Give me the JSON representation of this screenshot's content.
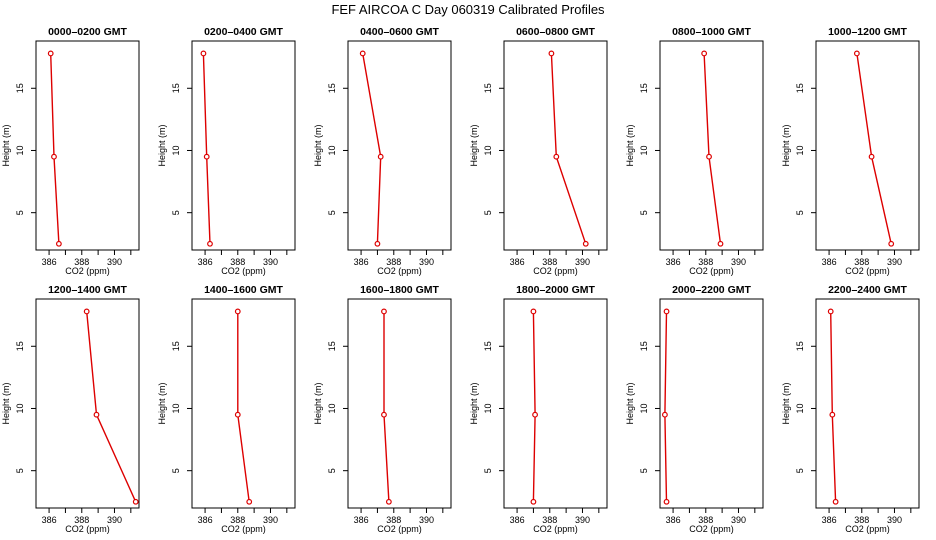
{
  "figure_title": "FEF AIRCOA C  Day 060319  Calibrated Profiles",
  "series_color": "#dd0000",
  "chart_data": [
    {
      "type": "line",
      "title": "0000–0200 GMT",
      "xlabel": "CO2 (ppm)",
      "ylabel": "Height (m)",
      "xlim": [
        385.2,
        391.5
      ],
      "ylim": [
        2,
        18.8
      ],
      "xticks": [
        386,
        388,
        390
      ],
      "yticks": [
        5,
        10,
        15
      ],
      "points": [
        {
          "x": 386.1,
          "y": 17.8
        },
        {
          "x": 386.3,
          "y": 9.5
        },
        {
          "x": 386.6,
          "y": 2.5
        }
      ]
    },
    {
      "type": "line",
      "title": "0200–0400 GMT",
      "xlabel": "CO2 (ppm)",
      "ylabel": "Height (m)",
      "xlim": [
        385.2,
        391.5
      ],
      "ylim": [
        2,
        18.8
      ],
      "xticks": [
        386,
        388,
        390
      ],
      "yticks": [
        5,
        10,
        15
      ],
      "points": [
        {
          "x": 385.9,
          "y": 17.8
        },
        {
          "x": 386.1,
          "y": 9.5
        },
        {
          "x": 386.3,
          "y": 2.5
        }
      ]
    },
    {
      "type": "line",
      "title": "0400–0600 GMT",
      "xlabel": "CO2 (ppm)",
      "ylabel": "Height (m)",
      "xlim": [
        385.2,
        391.5
      ],
      "ylim": [
        2,
        18.8
      ],
      "xticks": [
        386,
        388,
        390
      ],
      "yticks": [
        5,
        10,
        15
      ],
      "points": [
        {
          "x": 386.1,
          "y": 17.8
        },
        {
          "x": 387.2,
          "y": 9.5
        },
        {
          "x": 387.0,
          "y": 2.5
        }
      ]
    },
    {
      "type": "line",
      "title": "0600–0800 GMT",
      "xlabel": "CO2 (ppm)",
      "ylabel": "Height (m)",
      "xlim": [
        385.2,
        391.5
      ],
      "ylim": [
        2,
        18.8
      ],
      "xticks": [
        386,
        388,
        390
      ],
      "yticks": [
        5,
        10,
        15
      ],
      "points": [
        {
          "x": 388.1,
          "y": 17.8
        },
        {
          "x": 388.4,
          "y": 9.5
        },
        {
          "x": 390.2,
          "y": 2.5
        }
      ]
    },
    {
      "type": "line",
      "title": "0800–1000 GMT",
      "xlabel": "CO2 (ppm)",
      "ylabel": "Height (m)",
      "xlim": [
        385.2,
        391.5
      ],
      "ylim": [
        2,
        18.8
      ],
      "xticks": [
        386,
        388,
        390
      ],
      "yticks": [
        5,
        10,
        15
      ],
      "points": [
        {
          "x": 387.9,
          "y": 17.8
        },
        {
          "x": 388.2,
          "y": 9.5
        },
        {
          "x": 388.9,
          "y": 2.5
        }
      ]
    },
    {
      "type": "line",
      "title": "1000–1200 GMT",
      "xlabel": "CO2 (ppm)",
      "ylabel": "Height (m)",
      "xlim": [
        385.2,
        391.5
      ],
      "ylim": [
        2,
        18.8
      ],
      "xticks": [
        386,
        388,
        390
      ],
      "yticks": [
        5,
        10,
        15
      ],
      "points": [
        {
          "x": 387.7,
          "y": 17.8
        },
        {
          "x": 388.6,
          "y": 9.5
        },
        {
          "x": 389.8,
          "y": 2.5
        }
      ]
    },
    {
      "type": "line",
      "title": "1200–1400 GMT",
      "xlabel": "CO2 (ppm)",
      "ylabel": "Height (m)",
      "xlim": [
        385.2,
        391.5
      ],
      "ylim": [
        2,
        18.8
      ],
      "xticks": [
        386,
        388,
        390
      ],
      "yticks": [
        5,
        10,
        15
      ],
      "points": [
        {
          "x": 388.3,
          "y": 17.8
        },
        {
          "x": 388.9,
          "y": 9.5
        },
        {
          "x": 391.3,
          "y": 2.5
        }
      ]
    },
    {
      "type": "line",
      "title": "1400–1600 GMT",
      "xlabel": "CO2 (ppm)",
      "ylabel": "Height (m)",
      "xlim": [
        385.2,
        391.5
      ],
      "ylim": [
        2,
        18.8
      ],
      "xticks": [
        386,
        388,
        390
      ],
      "yticks": [
        5,
        10,
        15
      ],
      "points": [
        {
          "x": 388.0,
          "y": 17.8
        },
        {
          "x": 388.0,
          "y": 9.5
        },
        {
          "x": 388.7,
          "y": 2.5
        }
      ]
    },
    {
      "type": "line",
      "title": "1600–1800 GMT",
      "xlabel": "CO2 (ppm)",
      "ylabel": "Height (m)",
      "xlim": [
        385.2,
        391.5
      ],
      "ylim": [
        2,
        18.8
      ],
      "xticks": [
        386,
        388,
        390
      ],
      "yticks": [
        5,
        10,
        15
      ],
      "points": [
        {
          "x": 387.4,
          "y": 17.8
        },
        {
          "x": 387.4,
          "y": 9.5
        },
        {
          "x": 387.7,
          "y": 2.5
        }
      ]
    },
    {
      "type": "line",
      "title": "1800–2000 GMT",
      "xlabel": "CO2 (ppm)",
      "ylabel": "Height (m)",
      "xlim": [
        385.2,
        391.5
      ],
      "ylim": [
        2,
        18.8
      ],
      "xticks": [
        386,
        388,
        390
      ],
      "yticks": [
        5,
        10,
        15
      ],
      "points": [
        {
          "x": 387.0,
          "y": 17.8
        },
        {
          "x": 387.1,
          "y": 9.5
        },
        {
          "x": 387.0,
          "y": 2.5
        }
      ]
    },
    {
      "type": "line",
      "title": "2000–2200 GMT",
      "xlabel": "CO2 (ppm)",
      "ylabel": "Height (m)",
      "xlim": [
        385.2,
        391.5
      ],
      "ylim": [
        2,
        18.8
      ],
      "xticks": [
        386,
        388,
        390
      ],
      "yticks": [
        5,
        10,
        15
      ],
      "points": [
        {
          "x": 385.6,
          "y": 17.8
        },
        {
          "x": 385.5,
          "y": 9.5
        },
        {
          "x": 385.6,
          "y": 2.5
        }
      ]
    },
    {
      "type": "line",
      "title": "2200–2400 GMT",
      "xlabel": "CO2 (ppm)",
      "ylabel": "Height (m)",
      "xlim": [
        385.2,
        391.5
      ],
      "ylim": [
        2,
        18.8
      ],
      "xticks": [
        386,
        388,
        390
      ],
      "yticks": [
        5,
        10,
        15
      ],
      "points": [
        {
          "x": 386.1,
          "y": 17.8
        },
        {
          "x": 386.2,
          "y": 9.5
        },
        {
          "x": 386.4,
          "y": 2.5
        }
      ]
    }
  ]
}
